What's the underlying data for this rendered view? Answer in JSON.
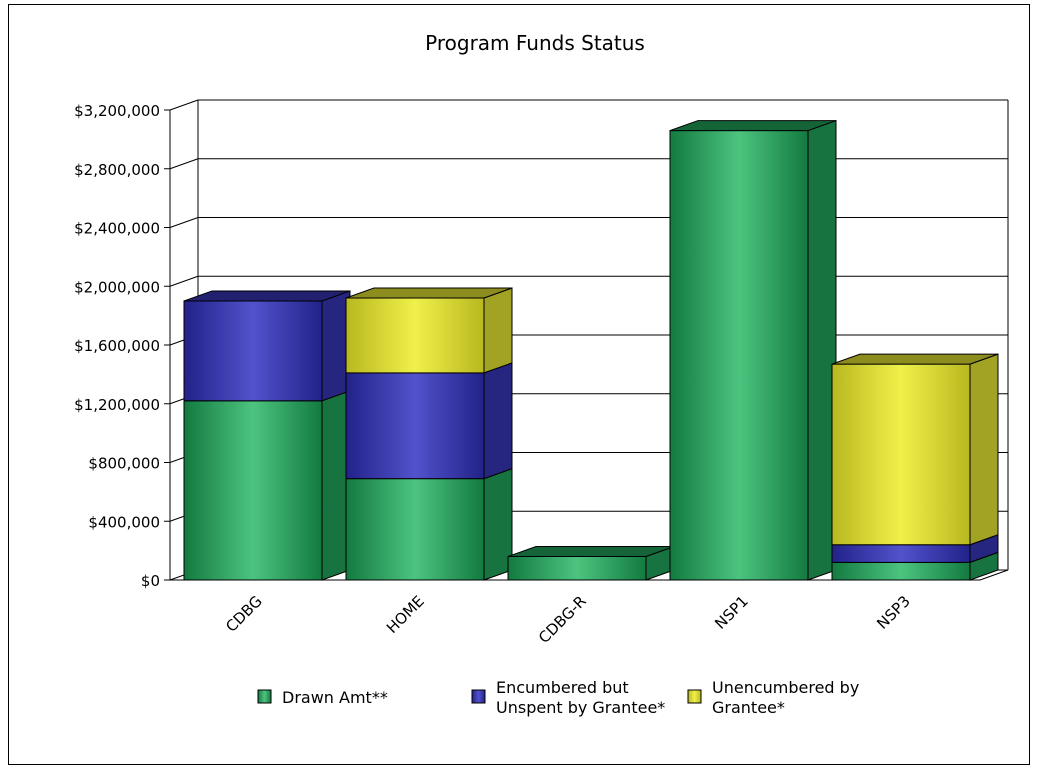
{
  "chart_data": {
    "type": "bar",
    "stacked": true,
    "three_d": true,
    "title": "Program Funds Status",
    "xlabel": "",
    "ylabel": "",
    "categories": [
      "CDBG",
      "HOME",
      "CDBG-R",
      "NSP1",
      "NSP3"
    ],
    "series": [
      {
        "name": "Drawn Amt**",
        "color": "#1e9a55",
        "values": [
          1220000,
          690000,
          160000,
          3060000,
          120000
        ]
      },
      {
        "name": "Encumbered but Unspent by Grantee*",
        "color": "#3333aa",
        "values": [
          680000,
          720000,
          0,
          0,
          120000
        ]
      },
      {
        "name": "Unencumbered by Grantee*",
        "color": "#d8d830",
        "values": [
          0,
          510000,
          0,
          0,
          1230000
        ]
      }
    ],
    "y_ticks": [
      "$0",
      "$400,000",
      "$800,000",
      "$1,200,000",
      "$1,600,000",
      "$2,000,000",
      "$2,400,000",
      "$2,800,000",
      "$3,200,000"
    ],
    "ylim": [
      0,
      3200000
    ],
    "grid": true,
    "legend_position": "bottom"
  }
}
